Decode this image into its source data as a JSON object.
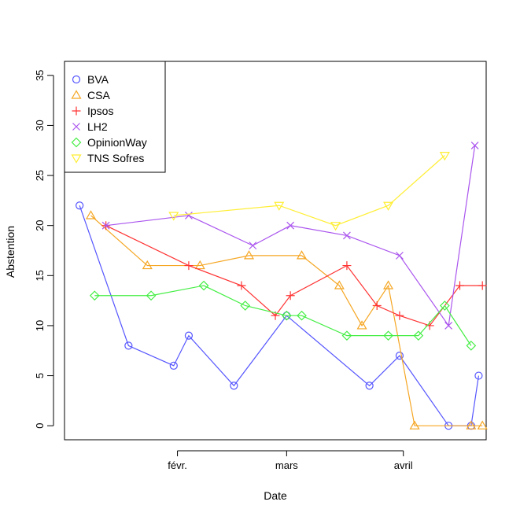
{
  "chart_data": {
    "type": "line",
    "title": "",
    "xlabel": "Date",
    "ylabel": "Abstention",
    "x_ticks": [
      "févr.",
      "mars",
      "avril"
    ],
    "x_tick_dates": [
      "2012-02-01",
      "2012-03-01",
      "2012-04-01"
    ],
    "xlim": [
      "2012-01-02",
      "2012-04-23"
    ],
    "ylim": [
      -1.4,
      36.4
    ],
    "y_ticks": [
      0,
      5,
      10,
      15,
      20,
      25,
      30,
      35
    ],
    "grid": false,
    "legend_position": "top-left",
    "series": [
      {
        "name": "BVA",
        "color": "#5555ff",
        "marker": "circle",
        "points": [
          [
            "2012-01-06",
            22
          ],
          [
            "2012-01-19",
            8
          ],
          [
            "2012-01-31",
            6
          ],
          [
            "2012-02-04",
            9
          ],
          [
            "2012-02-16",
            4
          ],
          [
            "2012-03-01",
            11
          ],
          [
            "2012-03-23",
            4
          ],
          [
            "2012-03-31",
            7
          ],
          [
            "2012-04-13",
            0
          ],
          [
            "2012-04-19",
            0
          ],
          [
            "2012-04-21",
            5
          ]
        ]
      },
      {
        "name": "CSA",
        "color": "#f5a623",
        "marker": "triangle",
        "points": [
          [
            "2012-01-09",
            21
          ],
          [
            "2012-01-24",
            16
          ],
          [
            "2012-02-07",
            16
          ],
          [
            "2012-02-20",
            17
          ],
          [
            "2012-03-05",
            17
          ],
          [
            "2012-03-15",
            14
          ],
          [
            "2012-03-21",
            10
          ],
          [
            "2012-03-28",
            14
          ],
          [
            "2012-04-04",
            0
          ],
          [
            "2012-04-19",
            0
          ],
          [
            "2012-04-22",
            0
          ]
        ]
      },
      {
        "name": "Ipsos",
        "color": "#ff3333",
        "marker": "plus",
        "points": [
          [
            "2012-01-13",
            20
          ],
          [
            "2012-02-04",
            16
          ],
          [
            "2012-02-18",
            14
          ],
          [
            "2012-02-27",
            11
          ],
          [
            "2012-03-02",
            13
          ],
          [
            "2012-03-17",
            16
          ],
          [
            "2012-03-25",
            12
          ],
          [
            "2012-03-31",
            11
          ],
          [
            "2012-04-08",
            10
          ],
          [
            "2012-04-16",
            14
          ],
          [
            "2012-04-22",
            14
          ]
        ]
      },
      {
        "name": "LH2",
        "color": "#aa55ee",
        "marker": "cross",
        "points": [
          [
            "2012-01-13",
            20
          ],
          [
            "2012-02-04",
            21
          ],
          [
            "2012-02-21",
            18
          ],
          [
            "2012-03-02",
            20
          ],
          [
            "2012-03-17",
            19
          ],
          [
            "2012-03-31",
            17
          ],
          [
            "2012-04-13",
            10
          ],
          [
            "2012-04-20",
            28
          ]
        ]
      },
      {
        "name": "OpinionWay",
        "color": "#44ee44",
        "marker": "diamond",
        "points": [
          [
            "2012-01-10",
            13
          ],
          [
            "2012-01-25",
            13
          ],
          [
            "2012-02-08",
            14
          ],
          [
            "2012-02-19",
            12
          ],
          [
            "2012-03-01",
            11
          ],
          [
            "2012-03-05",
            11
          ],
          [
            "2012-03-17",
            9
          ],
          [
            "2012-03-28",
            9
          ],
          [
            "2012-04-05",
            9
          ],
          [
            "2012-04-12",
            12
          ],
          [
            "2012-04-19",
            8
          ]
        ]
      },
      {
        "name": "TNS Sofres",
        "color": "#ffee33",
        "marker": "triangle-down",
        "points": [
          [
            "2012-01-31",
            21
          ],
          [
            "2012-02-28",
            22
          ],
          [
            "2012-03-14",
            20
          ],
          [
            "2012-03-28",
            22
          ],
          [
            "2012-04-12",
            27
          ]
        ]
      }
    ]
  }
}
